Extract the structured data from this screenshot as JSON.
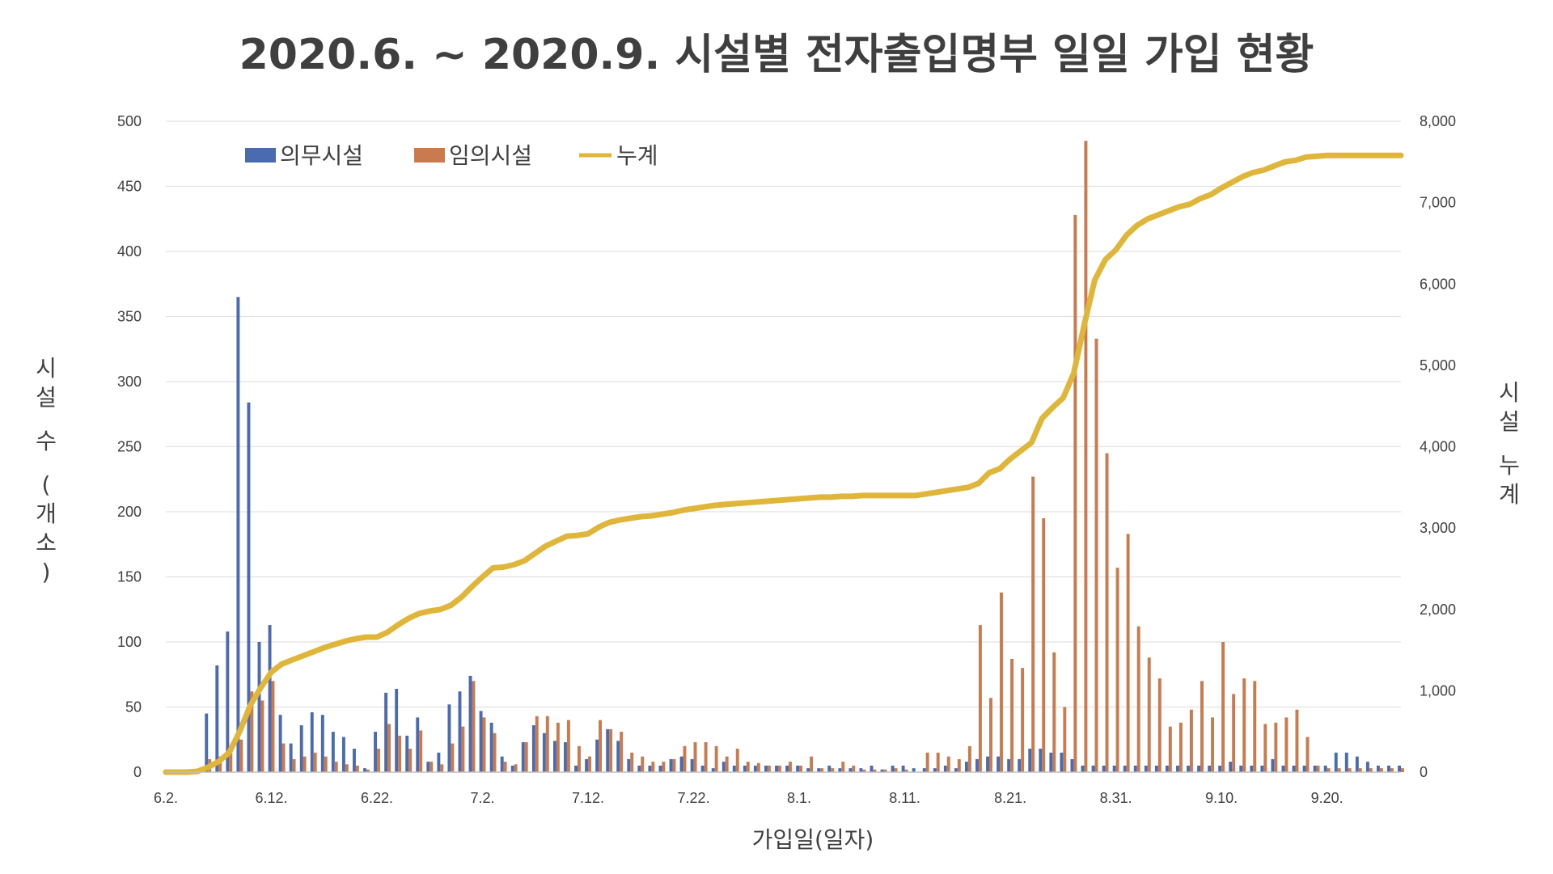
{
  "chart_data": {
    "type": "bar",
    "title": "2020.6.  ~ 2020.9. 시설별 전자출입명부 일일 가입 현황",
    "xlabel": "가입일(일자)",
    "ylabel_left": "시설 수 (개소)",
    "ylabel_right": "시설 누계",
    "ylim_left": [
      0,
      500
    ],
    "ylim_right": [
      0,
      8000
    ],
    "yticks_left": [
      "0",
      "50",
      "100",
      "150",
      "200",
      "250",
      "300",
      "350",
      "400",
      "450",
      "500"
    ],
    "yticks_right": [
      "0",
      "1,000",
      "2,000",
      "3,000",
      "4,000",
      "5,000",
      "6,000",
      "7,000",
      "8,000"
    ],
    "x_tick_labels": [
      "6.2.",
      "6.12.",
      "6.22.",
      "7.2.",
      "7.12.",
      "7.22.",
      "8.1.",
      "8.11.",
      "8.21.",
      "8.31.",
      "9.10.",
      "9.20."
    ],
    "grid": true,
    "legend_position": "top-left",
    "colors": {
      "mandatory": "#4a6bb0",
      "voluntary": "#c97a4e",
      "cumulative": "#e0b63a"
    },
    "series": [
      {
        "name": "의무시설",
        "axis": "left",
        "kind": "bar",
        "values": [
          0,
          0,
          0,
          0,
          45,
          82,
          108,
          365,
          284,
          100,
          113,
          44,
          22,
          36,
          46,
          44,
          31,
          27,
          18,
          3,
          31,
          61,
          64,
          28,
          42,
          8,
          15,
          52,
          62,
          74,
          47,
          38,
          12,
          5,
          23,
          36,
          30,
          24,
          23,
          5,
          10,
          25,
          33,
          24,
          10,
          5,
          5,
          5,
          10,
          12,
          10,
          5,
          3,
          8,
          5,
          5,
          5,
          5,
          5,
          5,
          5,
          3,
          3,
          5,
          3,
          3,
          3,
          5,
          2,
          5,
          5,
          3,
          3,
          3,
          5,
          3,
          8,
          10,
          12,
          12,
          10,
          10,
          18,
          18,
          15,
          15,
          10,
          5,
          5,
          5,
          5,
          5,
          5,
          5,
          5,
          5,
          5,
          5,
          5,
          5,
          5,
          8,
          5,
          5,
          5,
          10,
          5,
          5,
          5,
          5,
          5,
          15,
          15,
          12,
          8,
          5,
          5,
          5
        ]
      },
      {
        "name": "임의시설",
        "axis": "left",
        "kind": "bar",
        "values": [
          0,
          0,
          0,
          0,
          10,
          12,
          18,
          25,
          62,
          55,
          70,
          22,
          10,
          12,
          15,
          12,
          8,
          6,
          5,
          2,
          18,
          37,
          28,
          18,
          32,
          8,
          6,
          22,
          35,
          70,
          42,
          30,
          8,
          6,
          23,
          43,
          43,
          38,
          40,
          20,
          12,
          40,
          33,
          31,
          15,
          12,
          8,
          8,
          10,
          20,
          23,
          23,
          20,
          12,
          18,
          8,
          7,
          5,
          5,
          8,
          5,
          12,
          3,
          3,
          8,
          5,
          2,
          2,
          2,
          3,
          2,
          0,
          15,
          15,
          12,
          10,
          20,
          113,
          57,
          138,
          87,
          80,
          227,
          195,
          92,
          50,
          428,
          485,
          333,
          245,
          157,
          183,
          112,
          88,
          72,
          35,
          38,
          48,
          70,
          42,
          100,
          60,
          72,
          70,
          37,
          38,
          42,
          48,
          27,
          5,
          3,
          3,
          3,
          3,
          3,
          3,
          3,
          3
        ]
      },
      {
        "name": "누계",
        "axis": "right",
        "kind": "line",
        "values": [
          0,
          0,
          0,
          10,
          60,
          130,
          240,
          500,
          820,
          1040,
          1230,
          1330,
          1380,
          1430,
          1480,
          1530,
          1570,
          1610,
          1640,
          1660,
          1660,
          1720,
          1810,
          1890,
          1950,
          1980,
          2000,
          2050,
          2150,
          2280,
          2400,
          2510,
          2520,
          2550,
          2600,
          2690,
          2780,
          2840,
          2900,
          2910,
          2930,
          3010,
          3070,
          3100,
          3120,
          3140,
          3150,
          3170,
          3190,
          3220,
          3240,
          3260,
          3280,
          3290,
          3300,
          3310,
          3320,
          3330,
          3340,
          3350,
          3360,
          3370,
          3380,
          3380,
          3390,
          3390,
          3400,
          3400,
          3400,
          3400,
          3400,
          3400,
          3420,
          3440,
          3460,
          3480,
          3500,
          3550,
          3680,
          3730,
          3850,
          3950,
          4050,
          4350,
          4480,
          4600,
          4900,
          5500,
          6050,
          6300,
          6420,
          6600,
          6720,
          6800,
          6850,
          6900,
          6950,
          6980,
          7050,
          7100,
          7180,
          7250,
          7320,
          7370,
          7400,
          7450,
          7500,
          7520,
          7560,
          7570,
          7580,
          7580,
          7580,
          7580,
          7580,
          7580,
          7580,
          7580
        ]
      }
    ]
  }
}
